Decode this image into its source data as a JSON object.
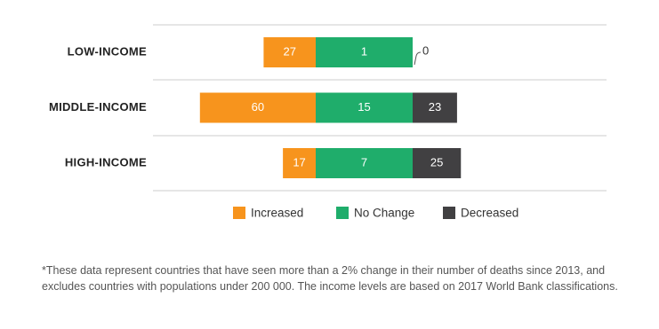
{
  "chart_data": {
    "type": "bar",
    "categories": [
      "LOW-INCOME",
      "MIDDLE-INCOME",
      "HIGH-INCOME"
    ],
    "series": [
      {
        "name": "Increased",
        "color": "#f7941d",
        "values": [
          27,
          60,
          17
        ]
      },
      {
        "name": "No Change",
        "color": "#1fad6b",
        "values": [
          1,
          15,
          7
        ]
      },
      {
        "name": "Decreased",
        "color": "#414042",
        "values": [
          0,
          23,
          25
        ]
      }
    ],
    "footnote": "*These data represent countries that have seen more than a 2% change in their number of deaths since 2013, and excludes countries with populations under 200 000. The income levels are based on 2017 World Bank classifications."
  }
}
